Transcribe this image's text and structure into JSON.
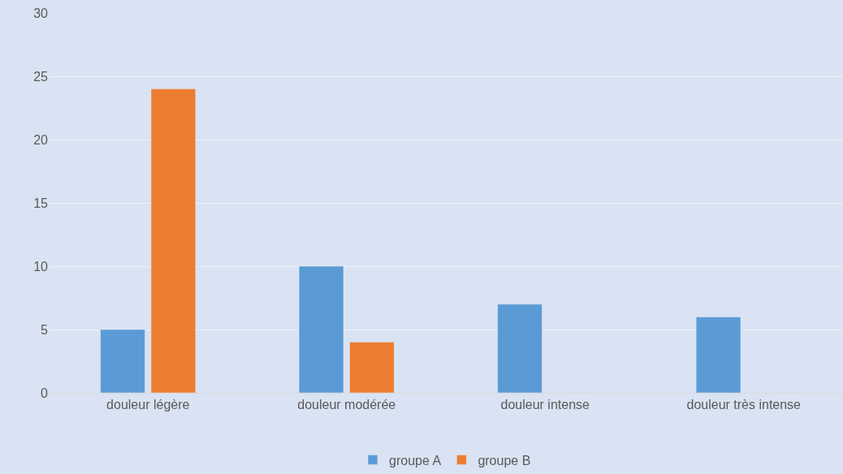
{
  "chart_data": {
    "type": "bar",
    "categories": [
      "douleur légère",
      "douleur modérée",
      "douleur intense",
      "douleur très intense"
    ],
    "series": [
      {
        "name": "groupe A",
        "color": "#5b9bd5",
        "values": [
          5,
          10,
          7,
          6
        ]
      },
      {
        "name": "groupe B",
        "color": "#ed7d31",
        "values": [
          24,
          4,
          null,
          null
        ]
      }
    ],
    "ylim": [
      0,
      30
    ],
    "yticks": [
      0,
      5,
      10,
      15,
      20,
      25,
      30
    ],
    "grid": "y",
    "legend": "bottom"
  }
}
